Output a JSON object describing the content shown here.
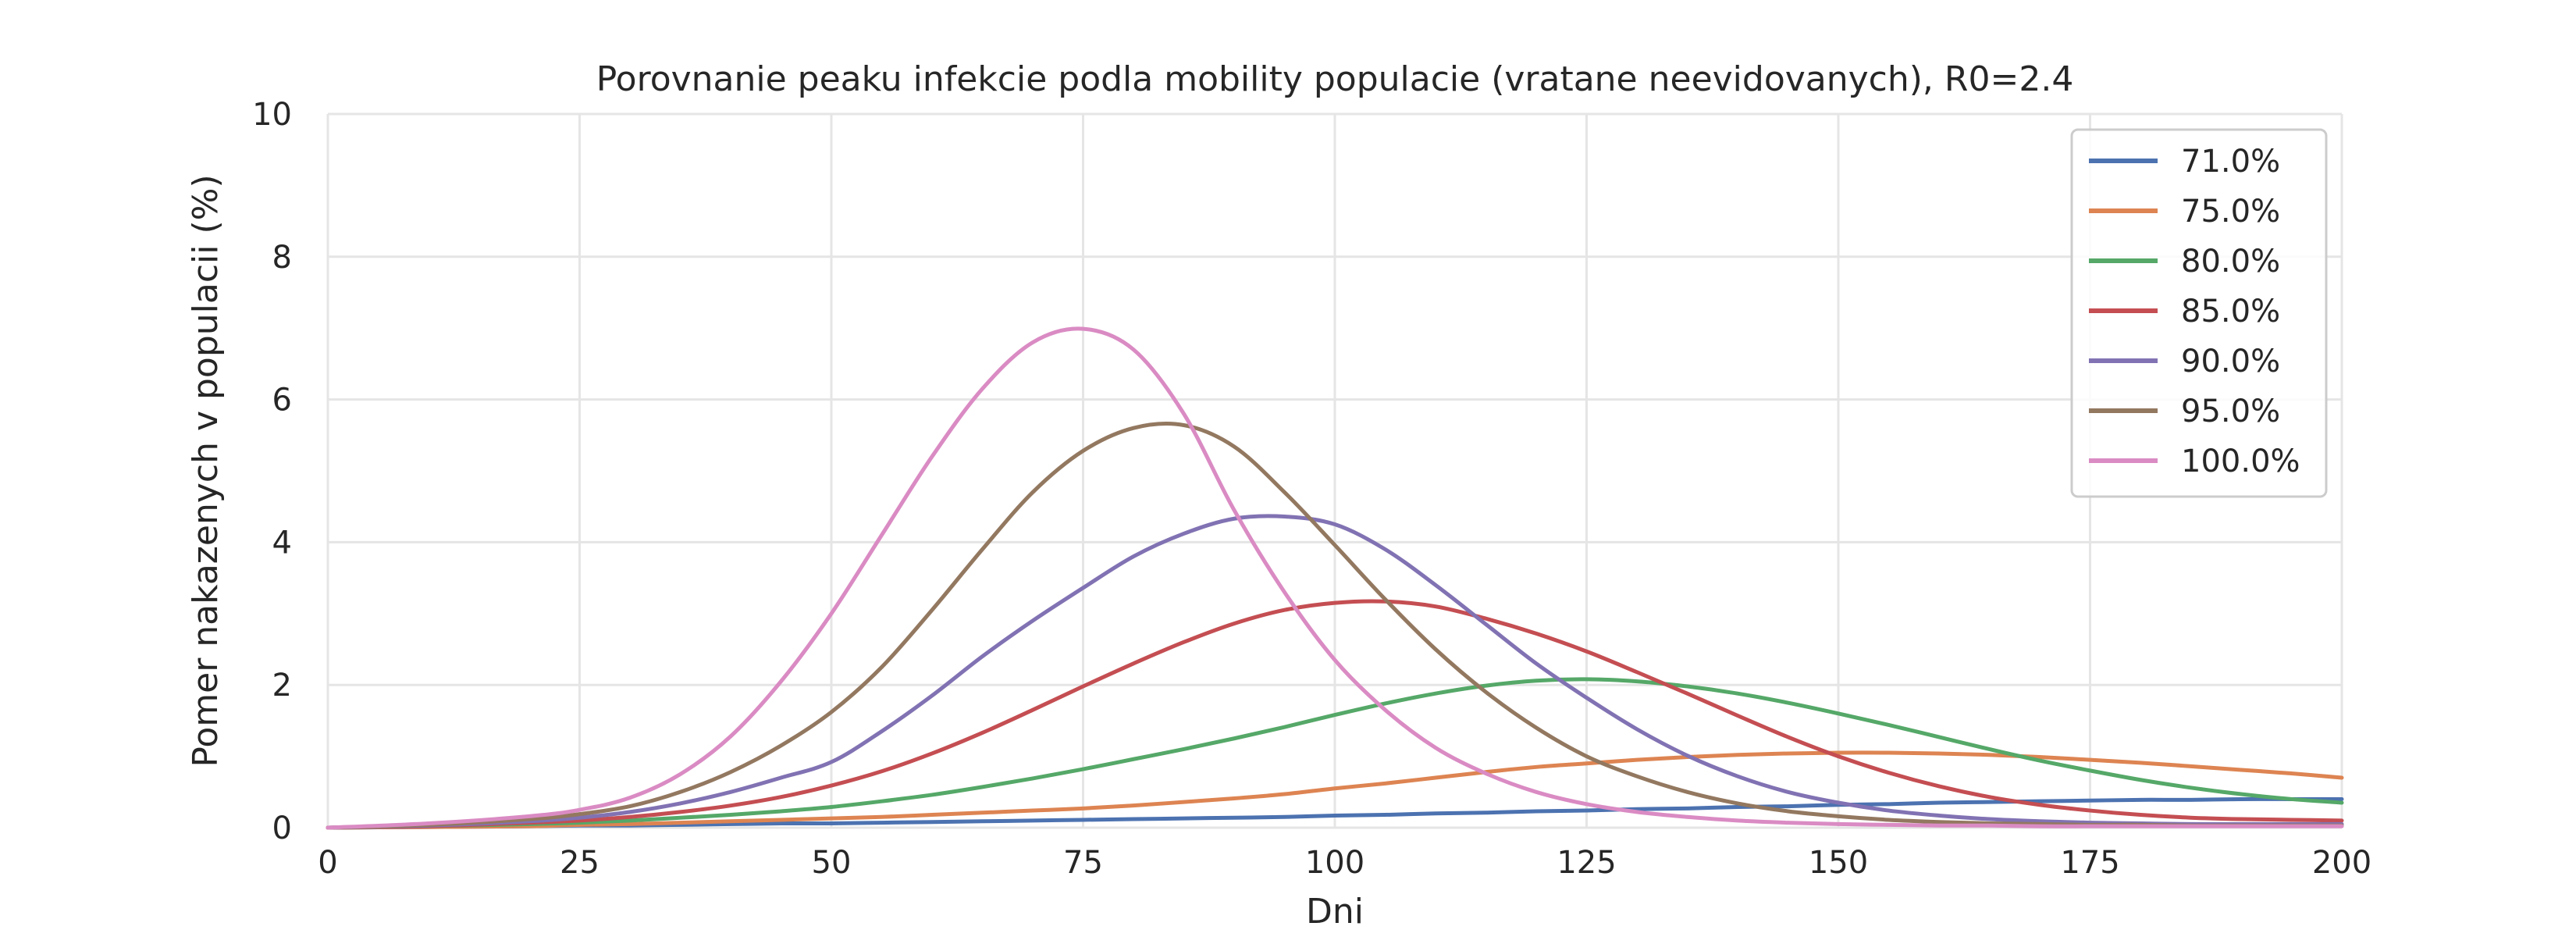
{
  "chart_data": {
    "type": "line",
    "title": "Porovnanie peaku infekcie podla mobility populacie (vratane neevidovanych), R0=2.4",
    "xlabel": "Dni",
    "ylabel": "Pomer nakazenych v populacii (%)",
    "xlim": [
      0,
      200
    ],
    "ylim": [
      0,
      10
    ],
    "xticks": [
      "0",
      "25",
      "50",
      "75",
      "100",
      "125",
      "150",
      "175",
      "200"
    ],
    "yticks": [
      "0",
      "2",
      "4",
      "6",
      "8",
      "10"
    ],
    "grid": true,
    "legend_position": "top-right",
    "x": [
      0,
      10,
      20,
      25,
      30,
      35,
      40,
      45,
      50,
      55,
      60,
      65,
      70,
      75,
      80,
      85,
      90,
      95,
      100,
      105,
      110,
      115,
      120,
      125,
      130,
      135,
      140,
      145,
      150,
      155,
      160,
      165,
      170,
      175,
      180,
      185,
      190,
      195,
      200
    ],
    "series": [
      {
        "name": "71.0%",
        "color": "#4c72b0",
        "values": [
          0,
          0.01,
          0.02,
          0.03,
          0.03,
          0.04,
          0.05,
          0.06,
          0.06,
          0.07,
          0.08,
          0.09,
          0.1,
          0.11,
          0.12,
          0.13,
          0.14,
          0.15,
          0.17,
          0.18,
          0.2,
          0.21,
          0.23,
          0.24,
          0.26,
          0.27,
          0.29,
          0.3,
          0.32,
          0.33,
          0.35,
          0.36,
          0.37,
          0.38,
          0.39,
          0.39,
          0.4,
          0.4,
          0.4
        ]
      },
      {
        "name": "75.0%",
        "color": "#dd8452",
        "values": [
          0,
          0.01,
          0.02,
          0.04,
          0.05,
          0.07,
          0.09,
          0.11,
          0.13,
          0.15,
          0.18,
          0.21,
          0.24,
          0.27,
          0.31,
          0.36,
          0.41,
          0.47,
          0.55,
          0.62,
          0.7,
          0.78,
          0.85,
          0.9,
          0.95,
          0.99,
          1.02,
          1.04,
          1.05,
          1.05,
          1.04,
          1.02,
          0.99,
          0.95,
          0.91,
          0.86,
          0.81,
          0.76,
          0.7
        ]
      },
      {
        "name": "80.0%",
        "color": "#55a868",
        "values": [
          0,
          0.02,
          0.05,
          0.07,
          0.1,
          0.14,
          0.18,
          0.23,
          0.29,
          0.37,
          0.46,
          0.57,
          0.69,
          0.82,
          0.96,
          1.1,
          1.25,
          1.41,
          1.58,
          1.74,
          1.88,
          1.99,
          2.06,
          2.08,
          2.05,
          1.98,
          1.88,
          1.75,
          1.6,
          1.44,
          1.27,
          1.1,
          0.94,
          0.8,
          0.67,
          0.56,
          0.47,
          0.4,
          0.35
        ]
      },
      {
        "name": "85.0%",
        "color": "#c44e52",
        "values": [
          0,
          0.02,
          0.07,
          0.1,
          0.15,
          0.22,
          0.31,
          0.43,
          0.59,
          0.79,
          1.04,
          1.33,
          1.65,
          1.98,
          2.3,
          2.6,
          2.86,
          3.05,
          3.15,
          3.17,
          3.1,
          2.93,
          2.72,
          2.47,
          2.18,
          1.88,
          1.57,
          1.27,
          1.0,
          0.77,
          0.58,
          0.43,
          0.32,
          0.24,
          0.18,
          0.14,
          0.12,
          0.11,
          0.1
        ]
      },
      {
        "name": "90.0%",
        "color": "#8172b3",
        "values": [
          0,
          0.03,
          0.09,
          0.14,
          0.22,
          0.34,
          0.5,
          0.7,
          0.92,
          1.35,
          1.85,
          2.4,
          2.9,
          3.36,
          3.8,
          4.12,
          4.33,
          4.36,
          4.25,
          3.9,
          3.4,
          2.85,
          2.3,
          1.82,
          1.38,
          1.01,
          0.72,
          0.5,
          0.35,
          0.24,
          0.17,
          0.12,
          0.09,
          0.07,
          0.06,
          0.05,
          0.05,
          0.05,
          0.05
        ]
      },
      {
        "name": "95.0%",
        "color": "#937860",
        "values": [
          0,
          0.04,
          0.12,
          0.19,
          0.3,
          0.5,
          0.78,
          1.15,
          1.62,
          2.25,
          3.05,
          3.9,
          4.7,
          5.28,
          5.6,
          5.64,
          5.34,
          4.7,
          3.96,
          3.2,
          2.5,
          1.9,
          1.4,
          1.0,
          0.72,
          0.5,
          0.34,
          0.23,
          0.16,
          0.11,
          0.08,
          0.06,
          0.05,
          0.04,
          0.04,
          0.03,
          0.03,
          0.03,
          0.03
        ]
      },
      {
        "name": "100.0%",
        "color": "#da8bc3",
        "values": [
          0,
          0.06,
          0.16,
          0.25,
          0.42,
          0.75,
          1.28,
          2.05,
          3.0,
          4.1,
          5.2,
          6.15,
          6.8,
          6.99,
          6.7,
          5.8,
          4.45,
          3.3,
          2.35,
          1.65,
          1.12,
          0.76,
          0.5,
          0.33,
          0.22,
          0.15,
          0.1,
          0.07,
          0.05,
          0.04,
          0.03,
          0.03,
          0.02,
          0.02,
          0.02,
          0.02,
          0.02,
          0.02,
          0.02
        ]
      }
    ]
  }
}
